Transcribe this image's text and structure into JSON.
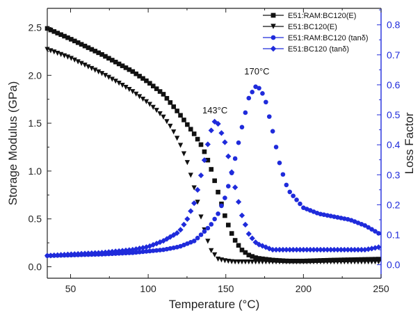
{
  "chart_data": {
    "type": "scatter",
    "xlabel": "Temperature (°C)",
    "ylabel_left": "Storage Modulus (GPa)",
    "ylabel_right": "Loss Factor",
    "xlim": [
      35,
      250
    ],
    "ylim_left": [
      -0.12,
      2.7
    ],
    "ylim_right": [
      -0.045,
      0.855
    ],
    "xticks": [
      "50",
      "100",
      "150",
      "200",
      "250"
    ],
    "yticks_left": [
      "0.0",
      "0.5",
      "1.0",
      "1.5",
      "2.0",
      "2.5"
    ],
    "yticks_right": [
      "0.0",
      "0.1",
      "0.2",
      "0.3",
      "0.4",
      "0.5",
      "0.6",
      "0.7",
      "0.8"
    ],
    "grid": false,
    "legend_position": "top-right",
    "colors": {
      "black": "#111111",
      "blue": "#1f2bdb",
      "axis": "#222222"
    },
    "annotations": [
      {
        "text": "143°C",
        "x": 143,
        "y": 0.505,
        "axis": "right"
      },
      {
        "text": "170°C",
        "x": 170,
        "y": 0.635,
        "axis": "right"
      }
    ],
    "series": [
      {
        "name": "E51:RAM:BC120(E)",
        "axis": "left",
        "marker": "square",
        "color": "#111111",
        "x": [
          35,
          50,
          60,
          70,
          80,
          90,
          100,
          110,
          120,
          125,
          130,
          135,
          140,
          145,
          150,
          155,
          160,
          165,
          170,
          180,
          190,
          200,
          220,
          250
        ],
        "y": [
          2.49,
          2.38,
          2.3,
          2.22,
          2.13,
          2.04,
          1.93,
          1.8,
          1.6,
          1.49,
          1.38,
          1.25,
          1.05,
          0.78,
          0.5,
          0.3,
          0.18,
          0.12,
          0.09,
          0.07,
          0.06,
          0.06,
          0.07,
          0.08
        ]
      },
      {
        "name": "E51:BC120(E)",
        "axis": "left",
        "marker": "triangle-down",
        "color": "#111111",
        "x": [
          35,
          50,
          60,
          70,
          80,
          90,
          100,
          105,
          110,
          115,
          120,
          125,
          130,
          135,
          140,
          145,
          150,
          155,
          160,
          170,
          180,
          190,
          200,
          220,
          250
        ],
        "y": [
          2.27,
          2.18,
          2.1,
          2.02,
          1.93,
          1.83,
          1.71,
          1.64,
          1.56,
          1.45,
          1.3,
          1.1,
          0.8,
          0.45,
          0.18,
          0.08,
          0.06,
          0.05,
          0.05,
          0.05,
          0.05,
          0.05,
          0.05,
          0.05,
          0.05
        ]
      },
      {
        "name": "E51:RAM:BC120 (tanδ)",
        "axis": "right",
        "marker": "circle",
        "color": "#1f2bdb",
        "x": [
          35,
          50,
          70,
          90,
          110,
          120,
          130,
          140,
          145,
          150,
          155,
          160,
          165,
          170,
          175,
          180,
          185,
          190,
          200,
          210,
          220,
          230,
          240,
          250
        ],
        "y": [
          0.03,
          0.032,
          0.035,
          0.04,
          0.05,
          0.06,
          0.08,
          0.13,
          0.17,
          0.23,
          0.33,
          0.45,
          0.56,
          0.6,
          0.56,
          0.45,
          0.33,
          0.25,
          0.19,
          0.17,
          0.16,
          0.15,
          0.13,
          0.1
        ]
      },
      {
        "name": "E51:BC120 (tanδ)",
        "axis": "right",
        "marker": "diamond",
        "color": "#1f2bdb",
        "x": [
          35,
          50,
          70,
          90,
          100,
          110,
          120,
          125,
          130,
          135,
          140,
          143,
          145,
          150,
          155,
          160,
          165,
          170,
          180,
          190,
          200,
          210,
          220,
          230,
          240,
          250
        ],
        "y": [
          0.03,
          0.035,
          0.04,
          0.05,
          0.06,
          0.08,
          0.11,
          0.15,
          0.21,
          0.32,
          0.44,
          0.48,
          0.47,
          0.4,
          0.28,
          0.17,
          0.1,
          0.07,
          0.05,
          0.05,
          0.05,
          0.05,
          0.05,
          0.05,
          0.05,
          0.06
        ]
      }
    ]
  }
}
